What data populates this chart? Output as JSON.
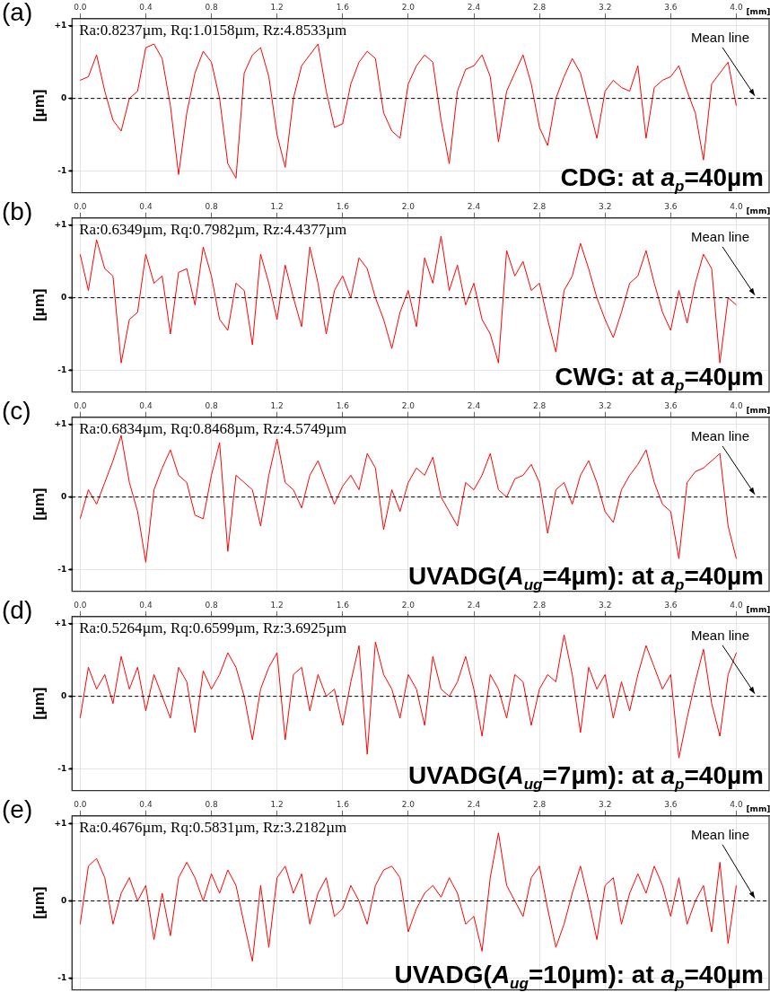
{
  "chart_data": [
    {
      "type": "line",
      "title": "(a)",
      "subtitle": "CDG: at a$_{p}$=40µm",
      "ylabel": "[µm]",
      "xlabel": "[mm]",
      "annotations": [
        "Ra:0.8237µm, Rq:1.0158µm, Rz:4.8533µm"
      ],
      "xlim": [
        -0.05,
        4.2
      ],
      "xticks": [
        {
          "value": 0,
          "label": "0.0"
        },
        0.4,
        0.8,
        1.2,
        1.6,
        {
          "value": 2,
          "label": "2.0"
        },
        2.4,
        2.8,
        3.2,
        3.6,
        {
          "value": 4,
          "label": "4.0"
        }
      ],
      "ylim": [
        -1.3,
        1.1
      ],
      "yticks": [
        {
          "value": -1,
          "label": "-1"
        },
        {
          "value": 0,
          "label": "0"
        },
        {
          "value": 1,
          "label": "+1"
        }
      ],
      "grid": true,
      "legend": false,
      "marker": "none",
      "ref_lines": [
        {
          "axis": "y",
          "value": 0,
          "label": "Mean line",
          "color": "#000000",
          "line_style": "dashed"
        }
      ],
      "x": [
        0,
        0.05,
        0.1,
        0.15,
        0.2,
        0.25,
        0.3,
        0.35,
        0.4,
        0.45,
        0.5,
        0.55,
        0.6,
        0.65,
        0.7,
        0.75,
        0.8,
        0.85,
        0.9,
        0.95,
        1,
        1.05,
        1.1,
        1.15,
        1.2,
        1.25,
        1.3,
        1.35,
        1.4,
        1.45,
        1.5,
        1.55,
        1.6,
        1.65,
        1.7,
        1.75,
        1.8,
        1.85,
        1.9,
        1.95,
        2,
        2.05,
        2.1,
        2.15,
        2.2,
        2.25,
        2.3,
        2.35,
        2.4,
        2.45,
        2.5,
        2.55,
        2.6,
        2.65,
        2.7,
        2.75,
        2.8,
        2.85,
        2.9,
        2.95,
        3,
        3.05,
        3.1,
        3.15,
        3.2,
        3.25,
        3.3,
        3.35,
        3.4,
        3.45,
        3.5,
        3.55,
        3.6,
        3.65,
        3.7,
        3.75,
        3.8,
        3.85,
        3.9,
        3.95,
        4
      ],
      "series": [
        {
          "color": "#ff0000",
          "values": [
            0.25,
            0.3,
            0.6,
            0.1,
            -0.3,
            -0.45,
            0.0,
            0.1,
            0.7,
            0.75,
            0.55,
            -0.1,
            -1.05,
            -0.2,
            0.35,
            0.65,
            0.5,
            0.0,
            -0.9,
            -1.1,
            0.35,
            0.6,
            0.7,
            0.3,
            -0.5,
            -0.95,
            0.0,
            0.45,
            0.6,
            0.75,
            0.1,
            -0.4,
            -0.35,
            0.2,
            0.5,
            0.65,
            0.55,
            -0.2,
            -0.45,
            -0.55,
            0.2,
            0.45,
            0.6,
            0.5,
            -0.3,
            -0.9,
            0.1,
            0.4,
            0.45,
            0.6,
            0.3,
            -0.6,
            0.1,
            0.35,
            0.6,
            0.2,
            -0.4,
            -0.65,
            0.0,
            0.3,
            0.55,
            0.35,
            -0.1,
            -0.55,
            0.1,
            0.25,
            0.15,
            0.1,
            0.45,
            -0.55,
            0.15,
            0.25,
            0.3,
            0.45,
            0.1,
            -0.2,
            -0.85,
            0.2,
            0.35,
            0.5,
            -0.1
          ]
        }
      ]
    },
    {
      "type": "line",
      "title": "(b)",
      "subtitle": "CWG: at a$_{p}$=40µm",
      "ylabel": "[µm]",
      "xlabel": "[mm]",
      "annotations": [
        "Ra:0.6349µm, Rq:0.7982µm, Rz:4.4377µm"
      ],
      "xlim": [
        -0.05,
        4.2
      ],
      "xticks": [
        {
          "value": 0,
          "label": "0.0"
        },
        0.4,
        0.8,
        1.2,
        1.6,
        {
          "value": 2,
          "label": "2.0"
        },
        2.4,
        2.8,
        3.2,
        3.6,
        {
          "value": 4,
          "label": "4.0"
        }
      ],
      "ylim": [
        -1.3,
        1.1
      ],
      "yticks": [
        {
          "value": -1,
          "label": "-1"
        },
        {
          "value": 0,
          "label": "0"
        },
        {
          "value": 1,
          "label": "+1"
        }
      ],
      "grid": true,
      "legend": false,
      "marker": "none",
      "ref_lines": [
        {
          "axis": "y",
          "value": 0,
          "label": "Mean line",
          "color": "#000000",
          "line_style": "dashed"
        }
      ],
      "x": [
        0,
        0.05,
        0.1,
        0.15,
        0.2,
        0.25,
        0.3,
        0.35,
        0.4,
        0.45,
        0.5,
        0.55,
        0.6,
        0.65,
        0.7,
        0.75,
        0.8,
        0.85,
        0.9,
        0.95,
        1,
        1.05,
        1.1,
        1.15,
        1.2,
        1.25,
        1.3,
        1.35,
        1.4,
        1.45,
        1.5,
        1.55,
        1.6,
        1.65,
        1.7,
        1.75,
        1.8,
        1.85,
        1.9,
        1.95,
        2,
        2.05,
        2.1,
        2.15,
        2.2,
        2.25,
        2.3,
        2.35,
        2.4,
        2.45,
        2.5,
        2.55,
        2.6,
        2.65,
        2.7,
        2.75,
        2.8,
        2.85,
        2.9,
        2.95,
        3,
        3.05,
        3.1,
        3.15,
        3.2,
        3.25,
        3.3,
        3.35,
        3.4,
        3.45,
        3.5,
        3.55,
        3.6,
        3.65,
        3.7,
        3.75,
        3.8,
        3.85,
        3.9,
        3.95,
        4
      ],
      "series": [
        {
          "color": "#ff0000",
          "values": [
            0.6,
            0.1,
            0.8,
            0.4,
            0.3,
            -0.9,
            -0.3,
            -0.2,
            0.6,
            0.2,
            0.3,
            -0.5,
            0.35,
            0.4,
            -0.1,
            0.7,
            0.3,
            -0.3,
            -0.45,
            0.2,
            0.1,
            -0.65,
            0.6,
            0.2,
            -0.3,
            0.45,
            0.0,
            -0.4,
            0.7,
            0.2,
            -0.5,
            0.1,
            0.3,
            0.0,
            0.55,
            0.4,
            0.0,
            -0.3,
            -0.7,
            -0.2,
            0.1,
            -0.4,
            0.55,
            0.2,
            0.85,
            0.1,
            0.45,
            -0.1,
            0.2,
            -0.3,
            -0.5,
            -0.9,
            0.65,
            0.3,
            0.5,
            0.1,
            0.2,
            -0.3,
            -0.75,
            0.1,
            0.3,
            0.75,
            0.4,
            0.0,
            -0.3,
            -0.55,
            -0.2,
            0.2,
            0.3,
            0.65,
            0.2,
            -0.2,
            -0.45,
            0.1,
            -0.35,
            0.2,
            0.6,
            0.4,
            -0.9,
            0.0,
            -0.1
          ]
        }
      ]
    },
    {
      "type": "line",
      "title": "(c)",
      "subtitle": "UVADG(A$_{ug}$=4µm): at a$_{p}$=40µm",
      "ylabel": "[µm]",
      "xlabel": "[mm]",
      "annotations": [
        "Ra:0.6834µm, Rq:0.8468µm, Rz:4.5749µm"
      ],
      "xlim": [
        -0.05,
        4.2
      ],
      "xticks": [
        {
          "value": 0,
          "label": "0.0"
        },
        0.4,
        0.8,
        1.2,
        1.6,
        {
          "value": 2,
          "label": "2.0"
        },
        2.4,
        2.8,
        3.2,
        3.6,
        {
          "value": 4,
          "label": "4.0"
        }
      ],
      "ylim": [
        -1.3,
        1.1
      ],
      "yticks": [
        {
          "value": -1,
          "label": "-1"
        },
        {
          "value": 0,
          "label": "0"
        },
        {
          "value": 1,
          "label": "+1"
        }
      ],
      "grid": true,
      "legend": false,
      "marker": "none",
      "ref_lines": [
        {
          "axis": "y",
          "value": 0,
          "label": "Mean line",
          "color": "#000000",
          "line_style": "dashed"
        }
      ],
      "x": [
        0,
        0.05,
        0.1,
        0.15,
        0.2,
        0.25,
        0.3,
        0.35,
        0.4,
        0.45,
        0.5,
        0.55,
        0.6,
        0.65,
        0.7,
        0.75,
        0.8,
        0.85,
        0.9,
        0.95,
        1,
        1.05,
        1.1,
        1.15,
        1.2,
        1.25,
        1.3,
        1.35,
        1.4,
        1.45,
        1.5,
        1.55,
        1.6,
        1.65,
        1.7,
        1.75,
        1.8,
        1.85,
        1.9,
        1.95,
        2,
        2.05,
        2.1,
        2.15,
        2.2,
        2.25,
        2.3,
        2.35,
        2.4,
        2.45,
        2.5,
        2.55,
        2.6,
        2.65,
        2.7,
        2.75,
        2.8,
        2.85,
        2.9,
        2.95,
        3,
        3.05,
        3.1,
        3.15,
        3.2,
        3.25,
        3.3,
        3.35,
        3.4,
        3.45,
        3.5,
        3.55,
        3.6,
        3.65,
        3.7,
        3.75,
        3.8,
        3.85,
        3.9,
        3.95,
        4
      ],
      "series": [
        {
          "color": "#ff0000",
          "values": [
            -0.3,
            0.1,
            -0.1,
            0.2,
            0.5,
            0.85,
            0.2,
            -0.2,
            -0.9,
            0.1,
            0.4,
            0.65,
            0.3,
            0.2,
            -0.25,
            -0.3,
            0.3,
            0.75,
            -0.75,
            0.3,
            0.2,
            0.1,
            -0.4,
            0.3,
            0.8,
            0.2,
            0.1,
            -0.15,
            0.3,
            0.5,
            0.2,
            -0.1,
            0.15,
            0.3,
            0.1,
            0.6,
            0.4,
            -0.45,
            0.1,
            -0.2,
            0.2,
            0.4,
            0.3,
            0.55,
            0.0,
            -0.2,
            -0.4,
            0.2,
            0.1,
            0.3,
            0.6,
            0.1,
            0.0,
            0.25,
            0.3,
            0.45,
            0.2,
            -0.5,
            0.1,
            0.2,
            -0.1,
            0.3,
            0.5,
            0.2,
            -0.2,
            -0.35,
            0.1,
            0.3,
            0.45,
            0.65,
            0.2,
            -0.1,
            -0.2,
            -0.85,
            0.2,
            0.35,
            0.4,
            0.5,
            0.6,
            -0.4,
            -0.85
          ]
        }
      ]
    },
    {
      "type": "line",
      "title": "(d)",
      "subtitle": "UVADG(A$_{ug}$=7µm): at a$_{p}$=40µm",
      "ylabel": "[µm]",
      "xlabel": "[mm]",
      "annotations": [
        "Ra:0.5264µm, Rq:0.6599µm, Rz:3.6925µm"
      ],
      "xlim": [
        -0.05,
        4.2
      ],
      "xticks": [
        {
          "value": 0,
          "label": "0.0"
        },
        0.4,
        0.8,
        1.2,
        1.6,
        {
          "value": 2,
          "label": "2.0"
        },
        2.4,
        2.8,
        3.2,
        3.6,
        {
          "value": 4,
          "label": "4.0"
        }
      ],
      "ylim": [
        -1.3,
        1.1
      ],
      "yticks": [
        {
          "value": -1,
          "label": "-1"
        },
        {
          "value": 0,
          "label": "0"
        },
        {
          "value": 1,
          "label": "+1"
        }
      ],
      "grid": true,
      "legend": false,
      "marker": "none",
      "ref_lines": [
        {
          "axis": "y",
          "value": 0,
          "label": "Mean line",
          "color": "#000000",
          "line_style": "dashed"
        }
      ],
      "x": [
        0,
        0.05,
        0.1,
        0.15,
        0.2,
        0.25,
        0.3,
        0.35,
        0.4,
        0.45,
        0.5,
        0.55,
        0.6,
        0.65,
        0.7,
        0.75,
        0.8,
        0.85,
        0.9,
        0.95,
        1,
        1.05,
        1.1,
        1.15,
        1.2,
        1.25,
        1.3,
        1.35,
        1.4,
        1.45,
        1.5,
        1.55,
        1.6,
        1.65,
        1.7,
        1.75,
        1.8,
        1.85,
        1.9,
        1.95,
        2,
        2.05,
        2.1,
        2.15,
        2.2,
        2.25,
        2.3,
        2.35,
        2.4,
        2.45,
        2.5,
        2.55,
        2.6,
        2.65,
        2.7,
        2.75,
        2.8,
        2.85,
        2.9,
        2.95,
        3,
        3.05,
        3.1,
        3.15,
        3.2,
        3.25,
        3.3,
        3.35,
        3.4,
        3.45,
        3.5,
        3.55,
        3.6,
        3.65,
        3.7,
        3.75,
        3.8,
        3.85,
        3.9,
        3.95,
        4
      ],
      "series": [
        {
          "color": "#ff0000",
          "values": [
            -0.3,
            0.4,
            0.1,
            0.3,
            -0.1,
            0.55,
            0.1,
            0.4,
            -0.2,
            0.3,
            0.0,
            -0.3,
            0.4,
            0.2,
            -0.5,
            0.35,
            0.1,
            0.3,
            0.6,
            0.4,
            0.0,
            -0.6,
            0.1,
            0.4,
            0.6,
            -0.6,
            0.3,
            0.4,
            -0.2,
            0.3,
            0.0,
            0.1,
            -0.4,
            0.2,
            0.7,
            -0.8,
            0.75,
            0.3,
            0.1,
            -0.3,
            0.3,
            0.1,
            -0.4,
            0.55,
            0.1,
            0.0,
            0.2,
            0.55,
            0.1,
            -0.55,
            0.3,
            0.1,
            -0.3,
            0.3,
            0.2,
            -0.4,
            0.1,
            0.3,
            0.2,
            0.85,
            0.3,
            -0.5,
            0.4,
            0.1,
            0.3,
            -0.3,
            0.2,
            -0.2,
            0.3,
            0.7,
            0.4,
            0.1,
            0.3,
            -0.85,
            -0.3,
            0.2,
            0.65,
            -0.1,
            -0.55,
            0.3,
            0.6
          ]
        }
      ]
    },
    {
      "type": "line",
      "title": "(e)",
      "subtitle": "UVADG(A$_{ug}$=10µm): at a$_{p}$=40µm",
      "ylabel": "[µm]",
      "xlabel": "[mm]",
      "annotations": [
        "Ra:0.4676µm, Rq:0.5831µm, Rz:3.2182µm"
      ],
      "xlim": [
        -0.05,
        4.2
      ],
      "xticks": [
        {
          "value": 0,
          "label": "0.0"
        },
        0.4,
        0.8,
        1.2,
        1.6,
        {
          "value": 2,
          "label": "2.0"
        },
        2.4,
        2.8,
        3.2,
        3.6,
        {
          "value": 4,
          "label": "4.0"
        }
      ],
      "ylim": [
        -1.15,
        1.1
      ],
      "yticks": [
        {
          "value": -1,
          "label": "-1"
        },
        {
          "value": 0,
          "label": "0"
        },
        {
          "value": 1,
          "label": "+1"
        }
      ],
      "grid": true,
      "legend": false,
      "marker": "none",
      "ref_lines": [
        {
          "axis": "y",
          "value": 0,
          "label": "Mean line",
          "color": "#000000",
          "line_style": "dashed"
        }
      ],
      "x": [
        0,
        0.05,
        0.1,
        0.15,
        0.2,
        0.25,
        0.3,
        0.35,
        0.4,
        0.45,
        0.5,
        0.55,
        0.6,
        0.65,
        0.7,
        0.75,
        0.8,
        0.85,
        0.9,
        0.95,
        1,
        1.05,
        1.1,
        1.15,
        1.2,
        1.25,
        1.3,
        1.35,
        1.4,
        1.45,
        1.5,
        1.55,
        1.6,
        1.65,
        1.7,
        1.75,
        1.8,
        1.85,
        1.9,
        1.95,
        2,
        2.05,
        2.1,
        2.15,
        2.2,
        2.25,
        2.3,
        2.35,
        2.4,
        2.45,
        2.5,
        2.55,
        2.6,
        2.65,
        2.7,
        2.75,
        2.8,
        2.85,
        2.9,
        2.95,
        3,
        3.05,
        3.1,
        3.15,
        3.2,
        3.25,
        3.3,
        3.35,
        3.4,
        3.45,
        3.5,
        3.55,
        3.6,
        3.65,
        3.7,
        3.75,
        3.8,
        3.85,
        3.9,
        3.95,
        4
      ],
      "series": [
        {
          "color": "#ff0000",
          "values": [
            -0.3,
            0.45,
            0.55,
            0.3,
            -0.3,
            0.1,
            0.3,
            0.0,
            0.2,
            -0.5,
            0.1,
            -0.45,
            0.3,
            0.5,
            0.3,
            0.0,
            0.35,
            0.1,
            0.4,
            0.2,
            -0.3,
            -0.78,
            0.2,
            -0.6,
            0.3,
            0.45,
            0.1,
            0.35,
            -0.3,
            0.1,
            0.3,
            -0.2,
            -0.1,
            0.2,
            0.0,
            -0.3,
            0.2,
            0.4,
            0.45,
            0.3,
            -0.4,
            -0.1,
            0.1,
            0.2,
            0.05,
            0.3,
            0.1,
            -0.3,
            -0.2,
            -0.65,
            0.3,
            0.88,
            0.2,
            0.0,
            -0.2,
            0.3,
            0.45,
            -0.1,
            -0.6,
            -0.3,
            0.1,
            0.45,
            0.0,
            -0.5,
            0.2,
            0.3,
            -0.3,
            0.1,
            0.35,
            0.1,
            0.45,
            0.2,
            -0.2,
            0.3,
            -0.3,
            0.0,
            0.2,
            -0.4,
            0.5,
            -0.55,
            0.2
          ]
        }
      ]
    }
  ]
}
